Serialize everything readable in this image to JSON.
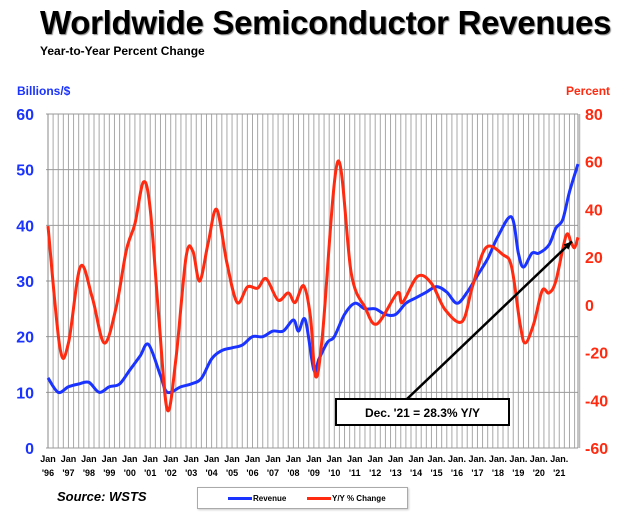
{
  "chart_data": {
    "type": "line",
    "title": "Worldwide Semiconductor Revenues",
    "subtitle": "Year-to-Year Percent Change",
    "ylabel_left": "Billions/$",
    "ylabel_right": "Percent",
    "ylim_left": [
      0,
      60
    ],
    "ylim_right": [
      -60,
      80
    ],
    "yticks_left": [
      "0",
      "10",
      "20",
      "30",
      "40",
      "50",
      "60"
    ],
    "yticks_right": [
      "-60",
      "-40",
      "-20",
      "0",
      "20",
      "40",
      "60",
      "80"
    ],
    "xlim": [
      "1996-01",
      "2021-12"
    ],
    "xtick_labels": [
      [
        "Jan",
        "'96"
      ],
      [
        "Jan",
        "'97"
      ],
      [
        "Jan",
        "'98"
      ],
      [
        "Jan",
        "'99"
      ],
      [
        "Jan",
        "'00"
      ],
      [
        "Jan",
        "'01"
      ],
      [
        "Jan",
        "'02"
      ],
      [
        "Jan",
        "'03"
      ],
      [
        "Jan",
        "'04"
      ],
      [
        "Jan",
        "'05"
      ],
      [
        "Jan",
        "'06"
      ],
      [
        "Jan",
        "'07"
      ],
      [
        "Jan",
        "'08"
      ],
      [
        "Jan",
        "'09"
      ],
      [
        "Jan",
        "'10"
      ],
      [
        "Jan",
        "'11"
      ],
      [
        "Jan",
        "'12"
      ],
      [
        "Jan",
        "'13"
      ],
      [
        "Jan",
        "'14"
      ],
      [
        "Jan.",
        "'15"
      ],
      [
        "Jan.",
        "'16"
      ],
      [
        "Jan.",
        "'17"
      ],
      [
        "Jan.",
        "'18"
      ],
      [
        "Jan.",
        "'19"
      ],
      [
        "Jan.",
        "'20"
      ],
      [
        "Jan.",
        "'21"
      ]
    ],
    "grid": true,
    "legend_placement": "bottom",
    "series": [
      {
        "name": "Revenue",
        "axis": "left",
        "color": "#1a33ff",
        "points": [
          [
            "1996-01",
            12.6
          ],
          [
            "1996-07",
            10.0
          ],
          [
            "1997-01",
            11.0
          ],
          [
            "1997-07",
            11.5
          ],
          [
            "1998-01",
            11.8
          ],
          [
            "1998-07",
            10.0
          ],
          [
            "1999-01",
            11.0
          ],
          [
            "1999-07",
            11.5
          ],
          [
            "2000-01",
            14.0
          ],
          [
            "2000-07",
            16.5
          ],
          [
            "2000-12",
            18.6
          ],
          [
            "2001-07",
            13.0
          ],
          [
            "2001-11",
            10.0
          ],
          [
            "2002-07",
            11.0
          ],
          [
            "2003-01",
            11.5
          ],
          [
            "2003-07",
            12.5
          ],
          [
            "2004-01",
            16.0
          ],
          [
            "2004-07",
            17.5
          ],
          [
            "2005-01",
            18.0
          ],
          [
            "2005-07",
            18.5
          ],
          [
            "2006-01",
            20.0
          ],
          [
            "2006-07",
            20.0
          ],
          [
            "2007-01",
            21.0
          ],
          [
            "2007-07",
            21.0
          ],
          [
            "2008-01",
            23.0
          ],
          [
            "2008-04",
            21.0
          ],
          [
            "2008-08",
            23.0
          ],
          [
            "2009-01",
            14.0
          ],
          [
            "2009-04",
            16.0
          ],
          [
            "2009-09",
            19.0
          ],
          [
            "2010-01",
            20.0
          ],
          [
            "2010-07",
            24.0
          ],
          [
            "2011-01",
            26.0
          ],
          [
            "2011-07",
            25.0
          ],
          [
            "2012-01",
            25.0
          ],
          [
            "2012-07",
            24.0
          ],
          [
            "2013-01",
            24.0
          ],
          [
            "2013-07",
            26.0
          ],
          [
            "2014-01",
            27.0
          ],
          [
            "2014-07",
            28.0
          ],
          [
            "2015-01",
            29.0
          ],
          [
            "2015-07",
            28.0
          ],
          [
            "2016-01",
            26.0
          ],
          [
            "2016-07",
            28.0
          ],
          [
            "2017-01",
            31.0
          ],
          [
            "2017-07",
            34.0
          ],
          [
            "2018-01",
            38.0
          ],
          [
            "2018-09",
            41.5
          ],
          [
            "2019-01",
            35.0
          ],
          [
            "2019-04",
            32.5
          ],
          [
            "2019-09",
            35.0
          ],
          [
            "2020-01",
            35.0
          ],
          [
            "2020-07",
            36.5
          ],
          [
            "2020-11",
            39.5
          ],
          [
            "2021-03",
            41.0
          ],
          [
            "2021-07",
            46.0
          ],
          [
            "2021-12",
            51.0
          ]
        ]
      },
      {
        "name": "Y/Y % Change",
        "axis": "right",
        "color": "#ff2a10",
        "points": [
          [
            "1996-01",
            33
          ],
          [
            "1996-08",
            -18
          ],
          [
            "1997-01",
            -16
          ],
          [
            "1997-08",
            16
          ],
          [
            "1998-03",
            3
          ],
          [
            "1998-10",
            -16
          ],
          [
            "1999-05",
            -1
          ],
          [
            "1999-11",
            23
          ],
          [
            "2000-04",
            34
          ],
          [
            "2000-09",
            51.5
          ],
          [
            "2001-01",
            40
          ],
          [
            "2001-06",
            -5
          ],
          [
            "2001-11",
            -44
          ],
          [
            "2002-04",
            -23
          ],
          [
            "2002-10",
            20
          ],
          [
            "2003-02",
            22.5
          ],
          [
            "2003-06",
            10
          ],
          [
            "2003-11",
            26
          ],
          [
            "2004-04",
            40
          ],
          [
            "2004-10",
            17.5
          ],
          [
            "2005-04",
            1
          ],
          [
            "2005-10",
            7.5
          ],
          [
            "2006-04",
            7
          ],
          [
            "2006-09",
            11
          ],
          [
            "2007-04",
            2
          ],
          [
            "2007-10",
            5
          ],
          [
            "2008-02",
            1
          ],
          [
            "2008-07",
            8
          ],
          [
            "2008-11",
            -5
          ],
          [
            "2009-02",
            -30
          ],
          [
            "2009-06",
            -13
          ],
          [
            "2010-03",
            60
          ],
          [
            "2010-11",
            13
          ],
          [
            "2011-07",
            -1
          ],
          [
            "2012-02",
            -8
          ],
          [
            "2013-02",
            5
          ],
          [
            "2013-05",
            1
          ],
          [
            "2014-02",
            12
          ],
          [
            "2014-10",
            9
          ],
          [
            "2015-06",
            -2
          ],
          [
            "2016-04",
            -7
          ],
          [
            "2016-10",
            7.5
          ],
          [
            "2017-06",
            24
          ],
          [
            "2018-04",
            21
          ],
          [
            "2018-09",
            16
          ],
          [
            "2019-02",
            -8
          ],
          [
            "2019-05",
            -16
          ],
          [
            "2019-10",
            -8
          ],
          [
            "2020-03",
            6
          ],
          [
            "2020-07",
            5
          ],
          [
            "2020-11",
            10
          ],
          [
            "2021-05",
            29
          ],
          [
            "2021-08",
            26
          ],
          [
            "2021-10",
            24
          ],
          [
            "2021-12",
            28.3
          ]
        ]
      }
    ],
    "annotation": {
      "text": "Dec. '21 = 28.3% Y/Y",
      "target": [
        "2021-12",
        28.3
      ]
    },
    "source": "Source: WSTS"
  }
}
